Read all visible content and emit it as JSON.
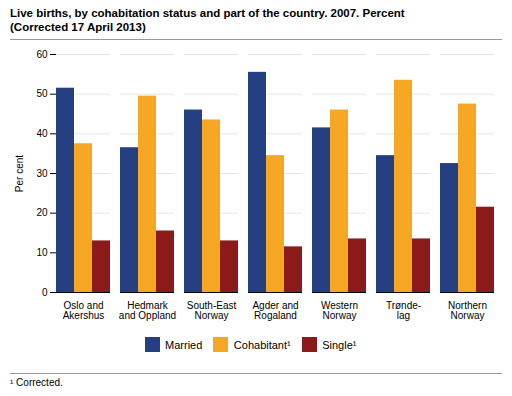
{
  "chart_data": {
    "type": "bar",
    "title": "Live births, by cohabitation status and part of the country. 2007. Percent",
    "subtitle": "(Corrected 17 April 2013)",
    "ylabel": "Per cent",
    "categories": [
      "Oslo and\nAkershus",
      "Hedmark\nand Oppland",
      "South-East\nNorway",
      "Agder and\nRogaland",
      "Western\nNorway",
      "Trønde-\nlag",
      "Northern\nNorway"
    ],
    "series": [
      {
        "name": "Married",
        "color": "#243f82",
        "values": [
          51.5,
          36.5,
          46.0,
          55.5,
          41.5,
          34.5,
          32.5
        ]
      },
      {
        "name": "Cohabitant¹",
        "color": "#f5a623",
        "values": [
          37.5,
          49.5,
          43.5,
          34.5,
          46.0,
          53.5,
          47.5
        ]
      },
      {
        "name": "Single¹",
        "color": "#8b1a1a",
        "values": [
          13.0,
          15.5,
          13.0,
          11.5,
          13.5,
          13.5,
          21.5
        ]
      }
    ],
    "ylim": [
      0,
      60
    ],
    "yticks": [
      0,
      10,
      20,
      30,
      40,
      50,
      60
    ],
    "grid": true,
    "legend": "bottom",
    "footnote": "¹ Corrected."
  }
}
